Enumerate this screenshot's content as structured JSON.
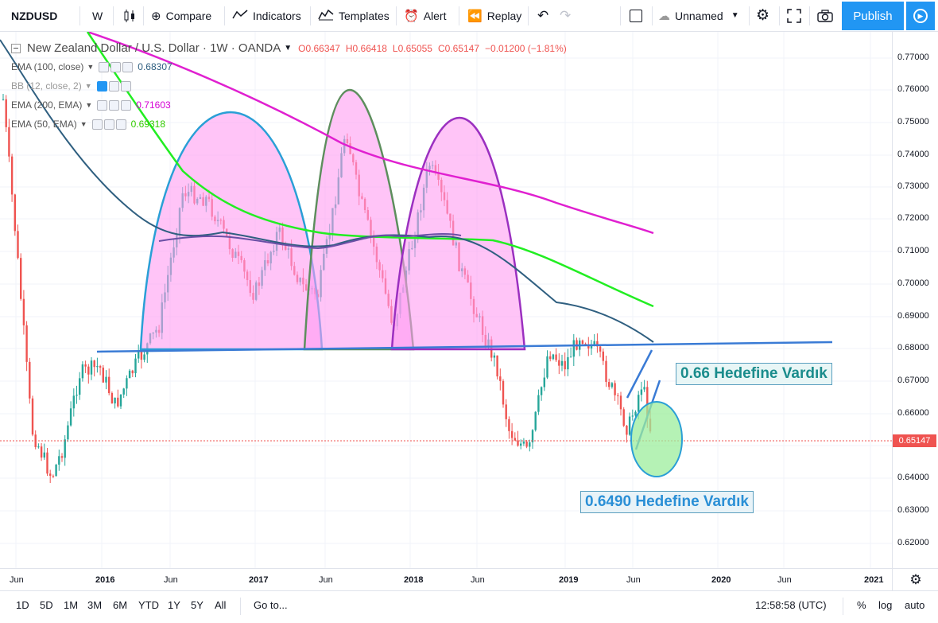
{
  "toolbar": {
    "symbol": "NZDUSD",
    "interval": "W",
    "compare": "Compare",
    "indicators": "Indicators",
    "templates": "Templates",
    "alert": "Alert",
    "replay": "Replay",
    "layout_name": "Unnamed",
    "publish": "Publish"
  },
  "legend": {
    "title": "New Zealand Dollar / U.S. Dollar · 1W · OANDA",
    "open": "O0.66347",
    "high": "H0.66418",
    "low": "L0.65055",
    "close": "C0.65147",
    "change": "−0.01200 (−1.81%)",
    "indicators": [
      {
        "label": "EMA (100, close)",
        "value": "0.68307",
        "color": "#2f5f80"
      },
      {
        "label": "BB (12, close, 2)",
        "value": "",
        "color": "#999999"
      },
      {
        "label": "EMA (200, EMA)",
        "value": "0.71603",
        "color": "#d500d5"
      },
      {
        "label": "EMA (50, EMA)",
        "value": "0.69318",
        "color": "#33cc00"
      }
    ]
  },
  "price_axis": {
    "ticks": [
      "0.77000",
      "0.76000",
      "0.75000",
      "0.74000",
      "0.73000",
      "0.72000",
      "0.71000",
      "0.70000",
      "0.69000",
      "0.68000",
      "0.67000",
      "0.66000",
      "0.65000",
      "0.64000",
      "0.63000",
      "0.62000"
    ],
    "current_price": "0.65147"
  },
  "time_axis": {
    "labels": [
      "Jun",
      "2016",
      "Jun",
      "2017",
      "Jun",
      "2018",
      "Jun",
      "2019",
      "Jun",
      "2020",
      "Jun",
      "2021"
    ]
  },
  "annotations": {
    "target1": "0.66 Hedefine Vardık",
    "target2": "0.6490 Hedefine Vardık"
  },
  "bottombar": {
    "ranges": [
      "1D",
      "5D",
      "1M",
      "3M",
      "6M",
      "YTD",
      "1Y",
      "5Y",
      "All"
    ],
    "goto": "Go to...",
    "clock": "12:58:58 (UTC)",
    "percent": "%",
    "log": "log",
    "auto": "auto"
  },
  "colors": {
    "accent": "#2196f3",
    "up": "#26a69a",
    "down": "#ef5350",
    "dome_fill": "#ff9cf2"
  }
}
